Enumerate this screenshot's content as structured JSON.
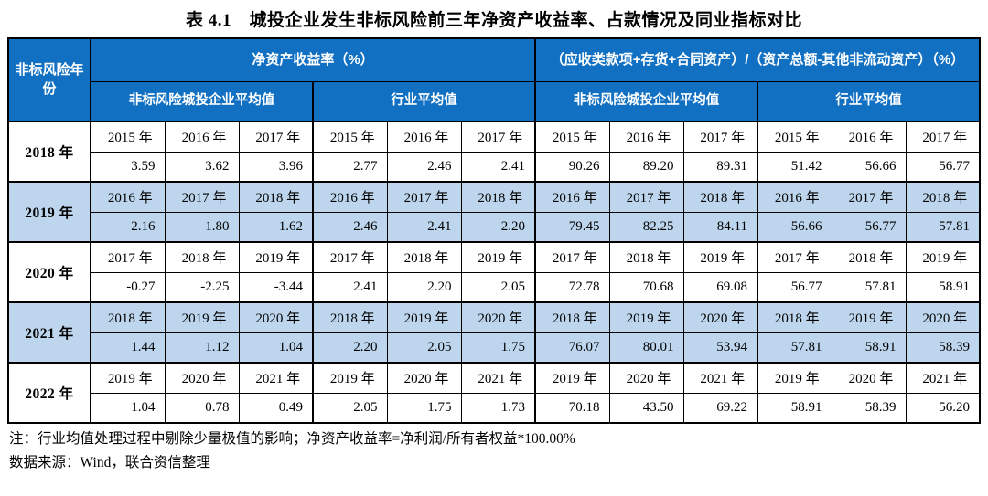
{
  "title": "表 4.1　城投企业发生非标风险前三年净资产收益率、占款情况及同业指标对比",
  "colors": {
    "header_bg": "#1170C2",
    "alt_row_bg": "#BDD6EE",
    "border": "#000000"
  },
  "table": {
    "corner_header": "非标风险年份",
    "groups": [
      {
        "label": "净资产收益率（%）"
      },
      {
        "label": "（应收类款项+存货+合同资产）/（资产总额-其他非流动资产）（%）"
      }
    ],
    "subheaders": [
      "非标风险城投企业平均值",
      "行业平均值",
      "非标风险城投企业平均值",
      "行业平均值"
    ],
    "rows": [
      {
        "label": "2018 年",
        "years": [
          "2015 年",
          "2016 年",
          "2017 年",
          "2015 年",
          "2016 年",
          "2017 年",
          "2015 年",
          "2016 年",
          "2017 年",
          "2015 年",
          "2016 年",
          "2017 年"
        ],
        "values": [
          "3.59",
          "3.62",
          "3.96",
          "2.77",
          "2.46",
          "2.41",
          "90.26",
          "89.20",
          "89.31",
          "51.42",
          "56.66",
          "56.77"
        ]
      },
      {
        "label": "2019 年",
        "years": [
          "2016 年",
          "2017 年",
          "2018 年",
          "2016 年",
          "2017 年",
          "2018 年",
          "2016 年",
          "2017 年",
          "2018 年",
          "2016 年",
          "2017 年",
          "2018 年"
        ],
        "values": [
          "2.16",
          "1.80",
          "1.62",
          "2.46",
          "2.41",
          "2.20",
          "79.45",
          "82.25",
          "84.11",
          "56.66",
          "56.77",
          "57.81"
        ]
      },
      {
        "label": "2020 年",
        "years": [
          "2017 年",
          "2018 年",
          "2019 年",
          "2017 年",
          "2018 年",
          "2019 年",
          "2017 年",
          "2018 年",
          "2019 年",
          "2017 年",
          "2018 年",
          "2019 年"
        ],
        "values": [
          "-0.27",
          "-2.25",
          "-3.44",
          "2.41",
          "2.20",
          "2.05",
          "72.78",
          "70.68",
          "69.08",
          "56.77",
          "57.81",
          "58.91"
        ]
      },
      {
        "label": "2021 年",
        "years": [
          "2018 年",
          "2019 年",
          "2020 年",
          "2018 年",
          "2019 年",
          "2020 年",
          "2018 年",
          "2019 年",
          "2020 年",
          "2018 年",
          "2019 年",
          "2020 年"
        ],
        "values": [
          "1.44",
          "1.12",
          "1.04",
          "2.20",
          "2.05",
          "1.75",
          "76.07",
          "80.01",
          "53.94",
          "57.81",
          "58.91",
          "58.39"
        ]
      },
      {
        "label": "2022 年",
        "years": [
          "2019 年",
          "2020 年",
          "2021 年",
          "2019 年",
          "2020 年",
          "2021 年",
          "2019 年",
          "2020 年",
          "2021 年",
          "2019 年",
          "2020 年",
          "2021 年"
        ],
        "values": [
          "1.04",
          "0.78",
          "0.49",
          "2.05",
          "1.75",
          "1.73",
          "70.18",
          "43.50",
          "69.22",
          "58.91",
          "58.39",
          "56.20"
        ]
      }
    ]
  },
  "notes": [
    "注：行业均值处理过程中剔除少量极值的影响；净资产收益率=净利润/所有者权益*100.00%",
    "数据来源：Wind，联合资信整理"
  ]
}
